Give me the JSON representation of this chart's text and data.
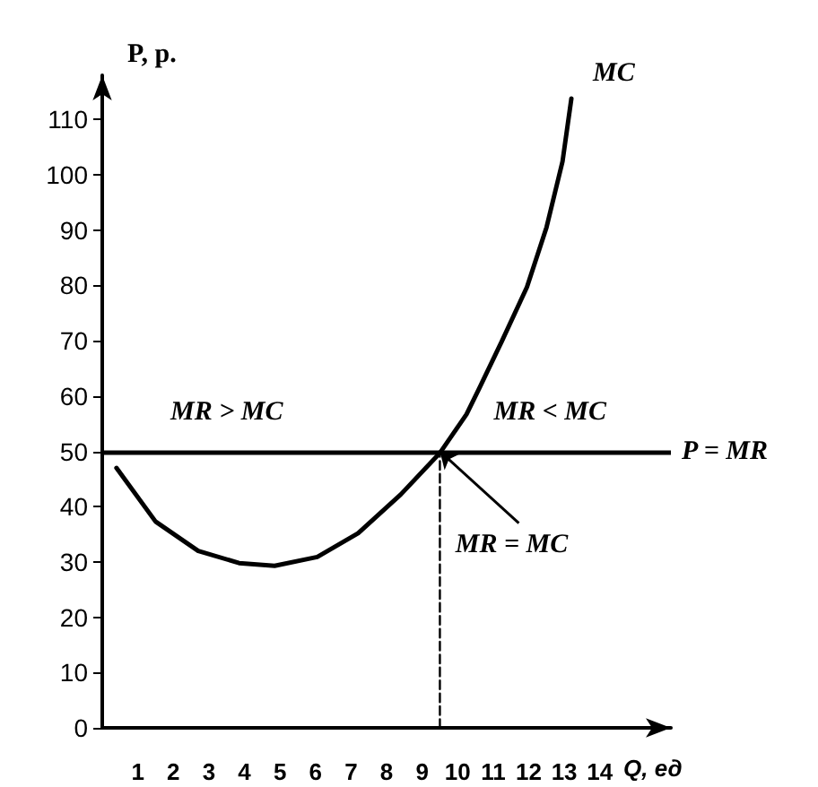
{
  "chart_data": {
    "type": "line",
    "xlabel": "Q, ед",
    "ylabel": "P, р.",
    "xlim": [
      0,
      16
    ],
    "xticks": [
      1,
      2,
      3,
      4,
      5,
      6,
      7,
      8,
      9,
      10,
      11,
      12,
      13,
      14
    ],
    "ylim": [
      0,
      118
    ],
    "yticks": [
      0,
      10,
      20,
      30,
      40,
      50,
      60,
      70,
      80,
      90,
      100,
      110
    ],
    "series": [
      {
        "name": "MC",
        "color": "#000000",
        "x": [
          0.4,
          1.5,
          2.7,
          3.85,
          4.85,
          6.05,
          7.2,
          8.4,
          9.5,
          10.25,
          10.6,
          11.25,
          11.95,
          12.5,
          12.95,
          13.2
        ],
        "values": [
          47,
          37.3,
          32,
          29.8,
          29.3,
          30.9,
          35.2,
          42.2,
          49.7,
          56.7,
          61.3,
          70,
          79.7,
          90.5,
          102.4,
          113.8
        ]
      },
      {
        "color": "#000000",
        "x": [
          9.5,
          9.5
        ],
        "values": [
          0,
          50
        ],
        "line_style": "dashed"
      }
    ],
    "ref_lines": [
      {
        "axis": "y",
        "value": 50,
        "label": "P = MR",
        "color": "#000000"
      }
    ],
    "annotations": [
      "MR > MC",
      "MR < MC",
      {
        "text": "MR = MC",
        "x": 9.5,
        "y": 50
      }
    ],
    "grid": false,
    "legend": false,
    "marker": "none"
  }
}
